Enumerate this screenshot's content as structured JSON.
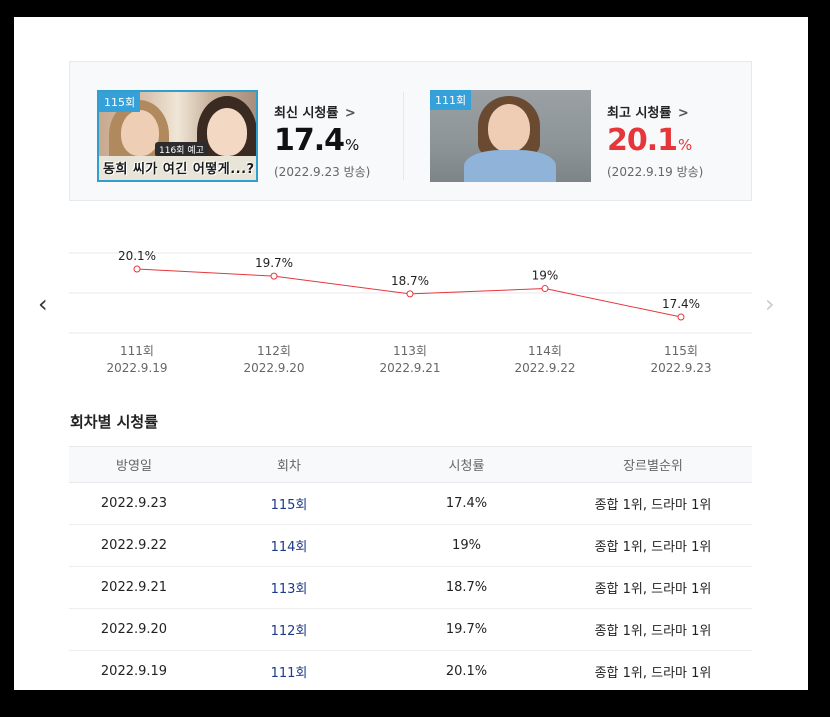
{
  "summary": {
    "latest": {
      "badge": "115회",
      "label": "최신 시청률",
      "chevron": ">",
      "value": "17.4",
      "unit": "%",
      "date": "(2022.9.23 방송)",
      "thumb_caption": "동희 씨가 여긴 어떻게...?",
      "thumb_tag": "116회 예고"
    },
    "best": {
      "badge": "111회",
      "label": "최고 시청률",
      "chevron": ">",
      "value": "20.1",
      "unit": "%",
      "date": "(2022.9.19 방송)"
    }
  },
  "chart_data": {
    "type": "line",
    "x": [
      "111회",
      "112회",
      "113회",
      "114회",
      "115회"
    ],
    "x_dates": [
      "2022.9.19",
      "2022.9.20",
      "2022.9.21",
      "2022.9.22",
      "2022.9.23"
    ],
    "values": [
      20.1,
      19.7,
      18.7,
      19,
      17.4
    ],
    "value_labels": [
      "20.1%",
      "19.7%",
      "18.7%",
      "19%",
      "17.4%"
    ],
    "ylim": [
      16.5,
      21.0
    ],
    "grid": true,
    "line_color": "#e5363c"
  },
  "nav": {
    "prev": "‹",
    "next": "›"
  },
  "table": {
    "title": "회차별 시청률",
    "headers": [
      "방영일",
      "회차",
      "시청률",
      "장르별순위"
    ],
    "rows": [
      {
        "date": "2022.9.23",
        "episode": "115회",
        "rating": "17.4%",
        "rank": "종합 1위, 드라마 1위"
      },
      {
        "date": "2022.9.22",
        "episode": "114회",
        "rating": "19%",
        "rank": "종합 1위, 드라마 1위"
      },
      {
        "date": "2022.9.21",
        "episode": "113회",
        "rating": "18.7%",
        "rank": "종합 1위, 드라마 1위"
      },
      {
        "date": "2022.9.20",
        "episode": "112회",
        "rating": "19.7%",
        "rank": "종합 1위, 드라마 1위"
      },
      {
        "date": "2022.9.19",
        "episode": "111회",
        "rating": "20.1%",
        "rank": "종합 1위, 드라마 1위"
      }
    ]
  }
}
